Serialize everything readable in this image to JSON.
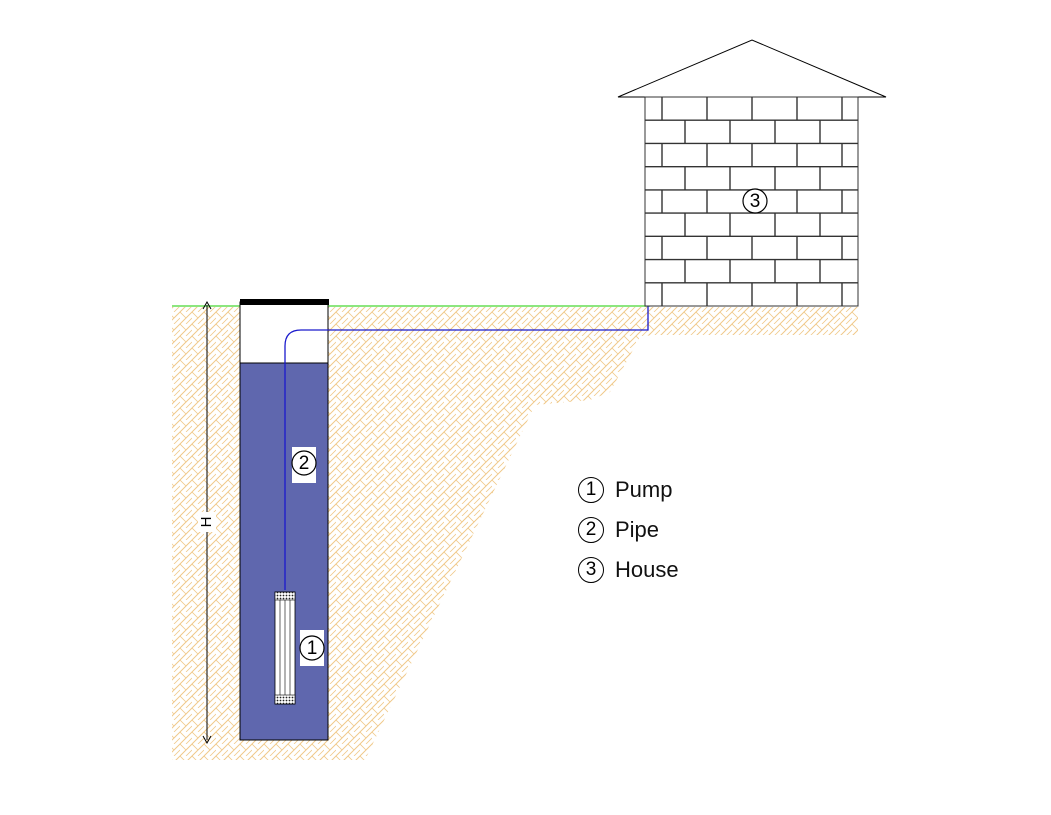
{
  "colors": {
    "ground_line": "#66dd55",
    "soil_hatch": "#f0c98a",
    "water": "#5f67ae",
    "pipe": "#1a1acc",
    "well_cap": "#000000",
    "brick_outline": "#333333"
  },
  "diagram": {
    "height_label": "H",
    "callouts": {
      "pump": "1",
      "pipe": "2",
      "house": "3"
    }
  },
  "legend": {
    "items": [
      {
        "number": "1",
        "label": "Pump"
      },
      {
        "number": "2",
        "label": "Pipe"
      },
      {
        "number": "3",
        "label": "House"
      }
    ]
  }
}
